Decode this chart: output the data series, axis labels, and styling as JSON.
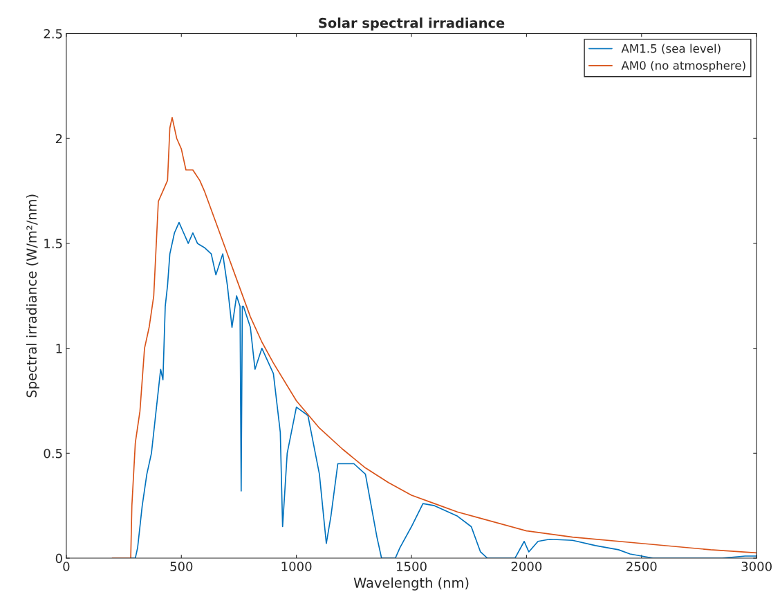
{
  "chart_data": {
    "type": "line",
    "title": "Solar spectral irradiance",
    "xlabel": "Wavelength (nm)",
    "ylabel": "Spectral irradiance (W/m²/nm)",
    "xlim": [
      0,
      3000
    ],
    "xticks": [
      0,
      500,
      1000,
      1500,
      2000,
      2500,
      3000
    ],
    "ylim": [
      0,
      2.5
    ],
    "yticks": [
      0,
      0.5,
      1,
      1.5,
      2,
      2.5
    ],
    "grid": false,
    "legend": "top right",
    "line_style": "solid",
    "marker": "none",
    "series": [
      {
        "name": "AM1.5 (sea level)",
        "color": "#0072bd",
        "x": [
          280,
          300,
          310,
          330,
          350,
          370,
          380,
          390,
          400,
          410,
          420,
          430,
          440,
          450,
          470,
          490,
          510,
          530,
          550,
          570,
          600,
          630,
          650,
          680,
          700,
          720,
          740,
          755,
          760,
          765,
          770,
          800,
          820,
          850,
          900,
          930,
          940,
          960,
          1000,
          1050,
          1100,
          1130,
          1150,
          1180,
          1250,
          1300,
          1350,
          1370,
          1430,
          1450,
          1500,
          1550,
          1600,
          1700,
          1760,
          1800,
          1830,
          1950,
          1990,
          2010,
          2050,
          2100,
          2200,
          2300,
          2400,
          2450,
          2500,
          2550,
          2850,
          2950,
          3000
        ],
        "values": [
          0,
          0,
          0.05,
          0.25,
          0.4,
          0.5,
          0.6,
          0.7,
          0.8,
          0.9,
          0.85,
          1.2,
          1.3,
          1.45,
          1.55,
          1.6,
          1.55,
          1.5,
          1.55,
          1.5,
          1.48,
          1.45,
          1.35,
          1.45,
          1.3,
          1.1,
          1.25,
          1.2,
          0.32,
          1.2,
          1.2,
          1.1,
          0.9,
          1.0,
          0.88,
          0.6,
          0.15,
          0.5,
          0.72,
          0.68,
          0.4,
          0.07,
          0.2,
          0.45,
          0.45,
          0.4,
          0.1,
          0,
          0,
          0.05,
          0.15,
          0.26,
          0.25,
          0.2,
          0.15,
          0.03,
          0,
          0,
          0.08,
          0.03,
          0.08,
          0.09,
          0.085,
          0.06,
          0.04,
          0.02,
          0.01,
          0,
          0,
          0.01,
          0.01
        ]
      },
      {
        "name": "AM0 (no atmosphere)",
        "color": "#d95319",
        "x": [
          200,
          280,
          285,
          300,
          320,
          340,
          360,
          380,
          400,
          420,
          440,
          450,
          460,
          480,
          500,
          520,
          550,
          580,
          600,
          650,
          700,
          750,
          800,
          850,
          900,
          1000,
          1100,
          1200,
          1300,
          1400,
          1500,
          1600,
          1700,
          1800,
          2000,
          2200,
          2500,
          2800,
          3000
        ],
        "values": [
          0,
          0,
          0.25,
          0.55,
          0.7,
          1.0,
          1.1,
          1.25,
          1.7,
          1.75,
          1.8,
          2.05,
          2.1,
          2.0,
          1.95,
          1.85,
          1.85,
          1.8,
          1.75,
          1.6,
          1.45,
          1.3,
          1.15,
          1.03,
          0.93,
          0.75,
          0.62,
          0.52,
          0.43,
          0.36,
          0.3,
          0.26,
          0.22,
          0.19,
          0.13,
          0.1,
          0.07,
          0.04,
          0.025
        ]
      }
    ]
  }
}
